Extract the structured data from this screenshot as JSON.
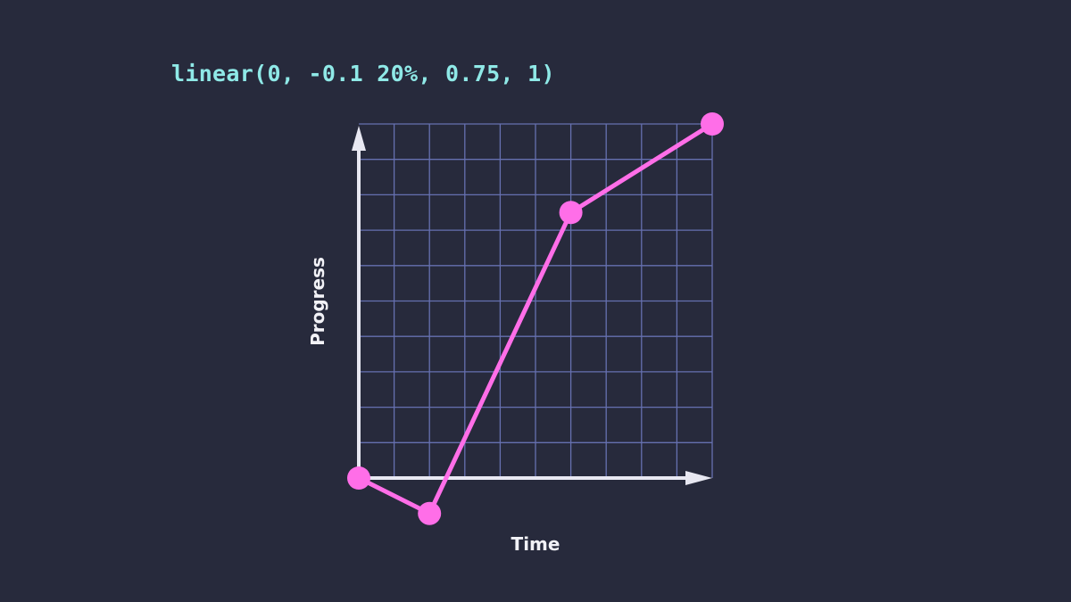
{
  "code_label": "linear(0, -0.1 20%, 0.75, 1)",
  "chart_data": {
    "type": "line",
    "title": "",
    "xlabel": "Time",
    "ylabel": "Progress",
    "xlim": [
      0,
      1
    ],
    "ylim": [
      0,
      1
    ],
    "grid": true,
    "grid_divisions": 10,
    "points": [
      {
        "x": 0,
        "y": 0
      },
      {
        "x": 0.2,
        "y": -0.1
      },
      {
        "x": 0.6,
        "y": 0.75
      },
      {
        "x": 1,
        "y": 1
      }
    ],
    "colors": {
      "background": "#272a3c",
      "grid": "#6670b0",
      "axes": "#e8e8f2",
      "line": "#ff6ee8",
      "code_text": "#8fe9e7"
    }
  }
}
